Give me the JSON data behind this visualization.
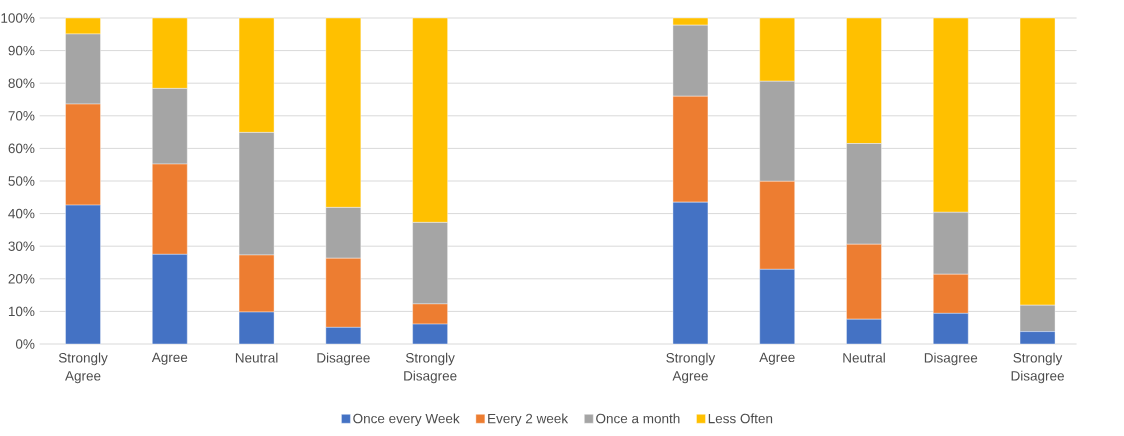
{
  "chart_data": {
    "type": "bar",
    "stacked": true,
    "categories": [
      "Strongly Agree",
      "Agree",
      "Neutral",
      "Disagree",
      "Strongly Disagree",
      null,
      null,
      "Strongly Agree",
      "Agree",
      "Neutral",
      "Disagree",
      "Strongly Disagree"
    ],
    "series": [
      {
        "name": "Once every Week",
        "color": "#4472c4",
        "values": [
          42.6,
          27.5,
          9.8,
          5.1,
          6.1,
          null,
          null,
          43.5,
          22.9,
          7.6,
          9.4,
          3.8
        ]
      },
      {
        "name": "Every 2 week",
        "color": "#ed7d31",
        "values": [
          31.0,
          27.7,
          17.5,
          21.2,
          6.2,
          null,
          null,
          32.5,
          27.0,
          23.0,
          12.0,
          0
        ]
      },
      {
        "name": "Once a month",
        "color": "#a5a5a5",
        "values": [
          21.5,
          23.2,
          37.6,
          15.6,
          25.0,
          null,
          null,
          21.8,
          30.7,
          30.9,
          19.0,
          8.1
        ]
      },
      {
        "name": "Less Often",
        "color": "#ffc000",
        "values": [
          4.9,
          21.6,
          35.1,
          58.1,
          62.7,
          null,
          null,
          2.2,
          19.4,
          38.5,
          59.6,
          88.1
        ]
      }
    ],
    "ylim": [
      0,
      100
    ],
    "yticks": [
      {
        "value": 0,
        "label": "0%"
      },
      {
        "value": 10,
        "label": "10%"
      },
      {
        "value": 20,
        "label": "20%"
      },
      {
        "value": 30,
        "label": "30%"
      },
      {
        "value": 40,
        "label": "40%"
      },
      {
        "value": 50,
        "label": "50%"
      },
      {
        "value": 60,
        "label": "60%"
      },
      {
        "value": 70,
        "label": "70%"
      },
      {
        "value": 80,
        "label": "80%"
      },
      {
        "value": 90,
        "label": "90%"
      },
      {
        "value": 100,
        "label": "100%"
      }
    ],
    "grid": "y",
    "legend": "bottom"
  }
}
